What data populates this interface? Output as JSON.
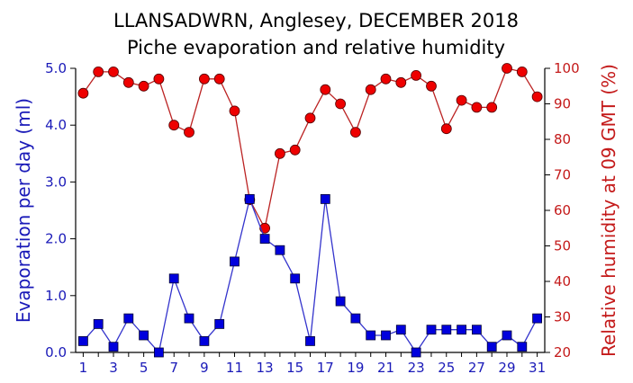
{
  "chart_data": {
    "type": "line",
    "title": "LLANSADWRN, Anglesey, DECEMBER 2018",
    "subtitle": "Piche evaporation and relative humidity",
    "ylabel_left": "Evaporation per day (ml)",
    "ylabel_right": "Relative humidity at 09 GMT (%)",
    "xlabel": "",
    "x": [
      1,
      2,
      3,
      4,
      5,
      6,
      7,
      8,
      9,
      10,
      11,
      12,
      13,
      14,
      15,
      16,
      17,
      18,
      19,
      20,
      21,
      22,
      23,
      24,
      25,
      26,
      27,
      28,
      29,
      30,
      31
    ],
    "x_tick_labels": [
      "1",
      "3",
      "5",
      "7",
      "9",
      "11",
      "13",
      "15",
      "17",
      "19",
      "21",
      "23",
      "25",
      "27",
      "29",
      "31"
    ],
    "xlim": [
      0.5,
      31.5
    ],
    "ylim_left": [
      0.0,
      5.0
    ],
    "ylim_right": [
      20,
      100
    ],
    "left_tick_labels": [
      "0.0",
      "1.0",
      "2.0",
      "3.0",
      "4.0",
      "5.0"
    ],
    "right_tick_labels": [
      "20",
      "30",
      "40",
      "50",
      "60",
      "70",
      "80",
      "90",
      "100"
    ],
    "grid": false,
    "series": [
      {
        "name": "Evaporation per day (ml)",
        "axis": "left",
        "marker": "square",
        "color": "#0000dd",
        "line_color": "#3333cc",
        "values": [
          0.2,
          0.5,
          0.1,
          0.6,
          0.3,
          0.0,
          1.3,
          0.6,
          0.2,
          0.5,
          1.6,
          2.7,
          2.0,
          1.8,
          1.3,
          0.2,
          2.7,
          0.9,
          0.6,
          0.3,
          0.3,
          0.4,
          0.0,
          0.4,
          0.4,
          0.4,
          0.4,
          0.1,
          0.3,
          0.1,
          0.6
        ]
      },
      {
        "name": "Relative humidity at 09 GMT (%)",
        "axis": "right",
        "marker": "circle",
        "color": "#ee0000",
        "line_color": "#bb2222",
        "values": [
          93,
          99,
          99,
          96,
          95,
          97,
          84,
          82,
          97,
          97,
          88,
          63,
          55,
          76,
          77,
          86,
          94,
          90,
          82,
          94,
          97,
          96,
          98,
          95,
          83,
          91,
          89,
          89,
          100,
          99,
          92
        ]
      }
    ]
  }
}
